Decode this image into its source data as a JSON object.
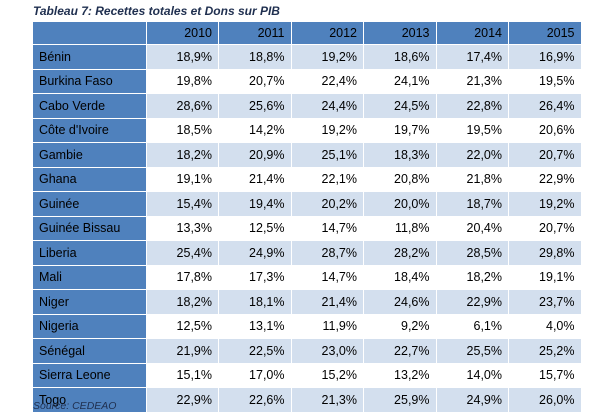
{
  "caption": "Tableau 7: Recettes totales et Dons sur PIB",
  "source": "Source: CEDEAO",
  "colors": {
    "header_blue": "#4f81bd",
    "band_light": "#d3dfee",
    "caption_text": "#1f2f4f"
  },
  "table": {
    "corner": "",
    "years": [
      "2010",
      "2011",
      "2012",
      "2013",
      "2014",
      "2015"
    ],
    "rows": [
      {
        "country": "Bénin",
        "values": [
          "18,9%",
          "18,8%",
          "19,2%",
          "18,6%",
          "17,4%",
          "16,9%"
        ]
      },
      {
        "country": "Burkina Faso",
        "values": [
          "19,8%",
          "20,7%",
          "22,4%",
          "24,1%",
          "21,3%",
          "19,5%"
        ]
      },
      {
        "country": "Cabo Verde",
        "values": [
          "28,6%",
          "25,6%",
          "24,4%",
          "24,5%",
          "22,8%",
          "26,4%"
        ]
      },
      {
        "country": "Côte d'Ivoire",
        "values": [
          "18,5%",
          "14,2%",
          "19,2%",
          "19,7%",
          "19,5%",
          "20,6%"
        ]
      },
      {
        "country": "Gambie",
        "values": [
          "18,2%",
          "20,9%",
          "25,1%",
          "18,3%",
          "22,0%",
          "20,7%"
        ]
      },
      {
        "country": "Ghana",
        "values": [
          "19,1%",
          "21,4%",
          "22,1%",
          "20,8%",
          "21,8%",
          "22,9%"
        ]
      },
      {
        "country": "Guinée",
        "values": [
          "15,4%",
          "19,4%",
          "20,2%",
          "20,0%",
          "18,7%",
          "19,2%"
        ]
      },
      {
        "country": "Guinée Bissau",
        "values": [
          "13,3%",
          "12,5%",
          "14,7%",
          "11,8%",
          "20,4%",
          "20,7%"
        ]
      },
      {
        "country": "Liberia",
        "values": [
          "25,4%",
          "24,9%",
          "28,7%",
          "28,2%",
          "28,5%",
          "29,8%"
        ]
      },
      {
        "country": "Mali",
        "values": [
          "17,8%",
          "17,3%",
          "14,7%",
          "18,4%",
          "18,2%",
          "19,1%"
        ]
      },
      {
        "country": "Niger",
        "values": [
          "18,2%",
          "18,1%",
          "21,4%",
          "24,6%",
          "22,9%",
          "23,7%"
        ]
      },
      {
        "country": "Nigeria",
        "values": [
          "12,5%",
          "13,1%",
          "11,9%",
          "9,2%",
          "6,1%",
          "4,0%"
        ]
      },
      {
        "country": "Sénégal",
        "values": [
          "21,9%",
          "22,5%",
          "23,0%",
          "22,7%",
          "25,5%",
          "25,2%"
        ]
      },
      {
        "country": "Sierra Leone",
        "values": [
          "15,1%",
          "17,0%",
          "15,2%",
          "13,2%",
          "14,0%",
          "15,7%"
        ]
      },
      {
        "country": "Togo",
        "values": [
          "22,9%",
          "22,6%",
          "21,3%",
          "25,9%",
          "24,9%",
          "26,0%"
        ]
      }
    ]
  }
}
